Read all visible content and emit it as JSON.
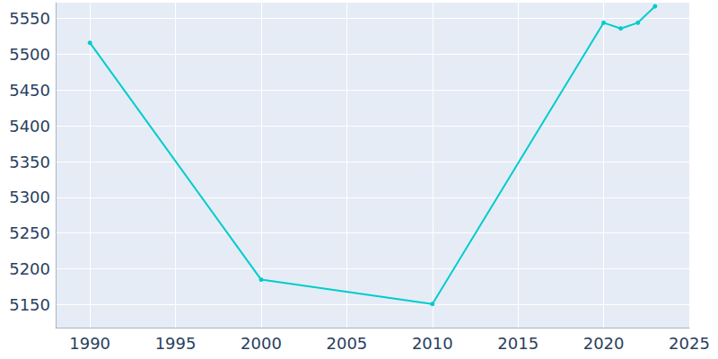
{
  "chart_data": {
    "type": "line",
    "x": [
      1990,
      2000,
      2010,
      2020,
      2021,
      2022,
      2023
    ],
    "values": [
      5516,
      5185,
      5151,
      5544,
      5536,
      5544,
      5567
    ],
    "color": "#00cccc",
    "marker": "circle",
    "xlim": [
      1988,
      2025
    ],
    "xticks": [
      1990,
      1995,
      2000,
      2005,
      2010,
      2015,
      2020,
      2025
    ],
    "ylim": [
      5118,
      5572
    ],
    "yticks": [
      5150,
      5200,
      5250,
      5300,
      5350,
      5400,
      5450,
      5500,
      5550
    ],
    "grid": true
  }
}
